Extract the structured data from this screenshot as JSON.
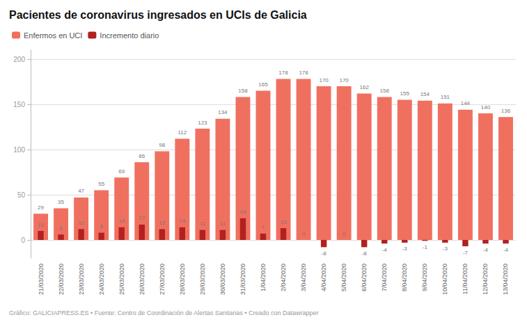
{
  "chart_data": {
    "type": "bar",
    "title": "Pacientes de coronavirus ingresados en UCIs de Galicia",
    "footer": "Gráfico: GALICIAPRESS.ES • Fuente: Centro de Coordinación de Alertas Sanitarias • Creado con Datawrapper",
    "categories": [
      "21/03/2020",
      "22/03/2020",
      "23/03/2020",
      "24/03/2020",
      "25/03/2020",
      "26/03/2020",
      "27/03/2020",
      "28/03/2020",
      "29/03/2020",
      "30/03/2020",
      "31/03/2020",
      "1/04/2020",
      "2/04/2020",
      "3/04/2020",
      "4/04/2020",
      "5/04/2020",
      "6/04/2020",
      "7/04/2020",
      "8/04/2020",
      "9/04/2020",
      "10/04/2020",
      "11/04/2020",
      "12/04/2020",
      "13/04/2020"
    ],
    "series": [
      {
        "name": "Enfermos en UCI",
        "color": "#F07060",
        "values": [
          29,
          35,
          47,
          55,
          69,
          86,
          98,
          112,
          123,
          134,
          158,
          165,
          178,
          178,
          170,
          170,
          162,
          158,
          155,
          154,
          151,
          144,
          140,
          136
        ]
      },
      {
        "name": "Incremento diario",
        "color": "#B22020",
        "values": [
          10,
          6,
          12,
          8,
          14,
          17,
          12,
          14,
          11,
          11,
          24,
          7,
          13,
          0,
          -8,
          0,
          -8,
          -4,
          -3,
          -1,
          -3,
          -7,
          -4,
          -4
        ]
      }
    ],
    "ylim": [
      -20,
      210
    ],
    "yticks": [
      0,
      50,
      100,
      150,
      200
    ],
    "grid": true,
    "legend": "top-left",
    "data_labels": true
  }
}
